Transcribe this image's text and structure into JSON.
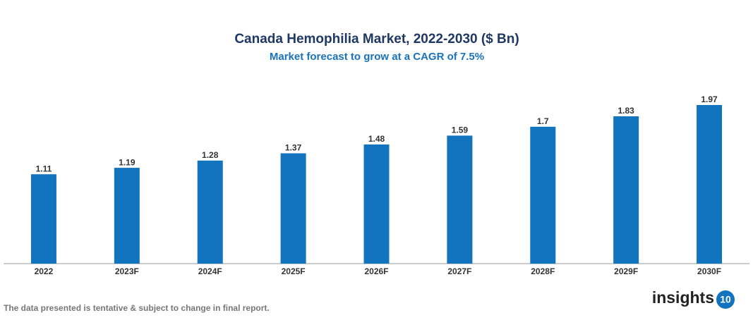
{
  "chart_data": {
    "type": "bar",
    "title": "Canada Hemophilia Market, 2022-2030 ($ Bn)",
    "subtitle": "Market forecast to grow at a CAGR of 7.5%",
    "categories": [
      "2022",
      "2023F",
      "2024F",
      "2025F",
      "2026F",
      "2027F",
      "2028F",
      "2029F",
      "2030F"
    ],
    "values": [
      1.11,
      1.19,
      1.28,
      1.37,
      1.48,
      1.59,
      1.7,
      1.83,
      1.97
    ],
    "color": "#1273be",
    "grid": false
  },
  "footer": {
    "note": "The data presented is tentative & subject to change in final report."
  },
  "logo": {
    "text": "insights",
    "number": "10"
  }
}
